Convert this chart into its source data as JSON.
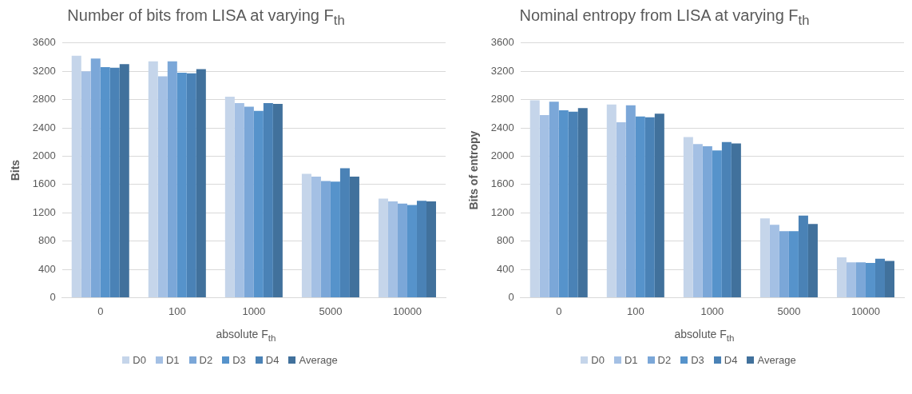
{
  "chart_data": [
    {
      "type": "bar",
      "title": "Number of bits from LISA at varying F$_{th}$",
      "xlabel": "absolute F$_{th}$",
      "ylabel": "Bits",
      "categories": [
        "0",
        "100",
        "1000",
        "5000",
        "10000"
      ],
      "series": [
        {
          "name": "D0",
          "color": "#c5d5ea",
          "values": [
            3420,
            3340,
            2840,
            1750,
            1400
          ]
        },
        {
          "name": "D1",
          "color": "#a4c0e4",
          "values": [
            3200,
            3130,
            2750,
            1710,
            1360
          ]
        },
        {
          "name": "D2",
          "color": "#7ba7d8",
          "values": [
            3380,
            3340,
            2700,
            1650,
            1330
          ]
        },
        {
          "name": "D3",
          "color": "#5693cb",
          "values": [
            3260,
            3180,
            2640,
            1640,
            1310
          ]
        },
        {
          "name": "D4",
          "color": "#4a82b6",
          "values": [
            3250,
            3170,
            2750,
            1830,
            1370
          ]
        },
        {
          "name": "Average",
          "color": "#41719c",
          "values": [
            3300,
            3230,
            2740,
            1710,
            1360
          ]
        }
      ],
      "ylim": [
        0,
        3600
      ],
      "yticks": [
        0,
        400,
        800,
        1200,
        1600,
        2000,
        2400,
        2800,
        3200,
        3600
      ],
      "grid": "y",
      "legend": "bottom"
    },
    {
      "type": "bar",
      "title": "Nominal entropy from LISA at varying F$_{th}$",
      "xlabel": "absolute F$_{th}$",
      "ylabel": "Bits of entropy",
      "categories": [
        "0",
        "100",
        "1000",
        "5000",
        "10000"
      ],
      "series": [
        {
          "name": "D0",
          "color": "#c5d5ea",
          "values": [
            2790,
            2730,
            2270,
            1120,
            570
          ]
        },
        {
          "name": "D1",
          "color": "#a4c0e4",
          "values": [
            2580,
            2480,
            2170,
            1030,
            500
          ]
        },
        {
          "name": "D2",
          "color": "#7ba7d8",
          "values": [
            2770,
            2720,
            2140,
            940,
            500
          ]
        },
        {
          "name": "D3",
          "color": "#5693cb",
          "values": [
            2650,
            2560,
            2080,
            940,
            490
          ]
        },
        {
          "name": "D4",
          "color": "#4a82b6",
          "values": [
            2630,
            2550,
            2200,
            1160,
            550
          ]
        },
        {
          "name": "Average",
          "color": "#41719c",
          "values": [
            2680,
            2600,
            2180,
            1040,
            520
          ]
        }
      ],
      "ylim": [
        0,
        3600
      ],
      "yticks": [
        0,
        400,
        800,
        1200,
        1600,
        2000,
        2400,
        2800,
        3200,
        3600
      ],
      "grid": "y",
      "legend": "bottom"
    }
  ]
}
